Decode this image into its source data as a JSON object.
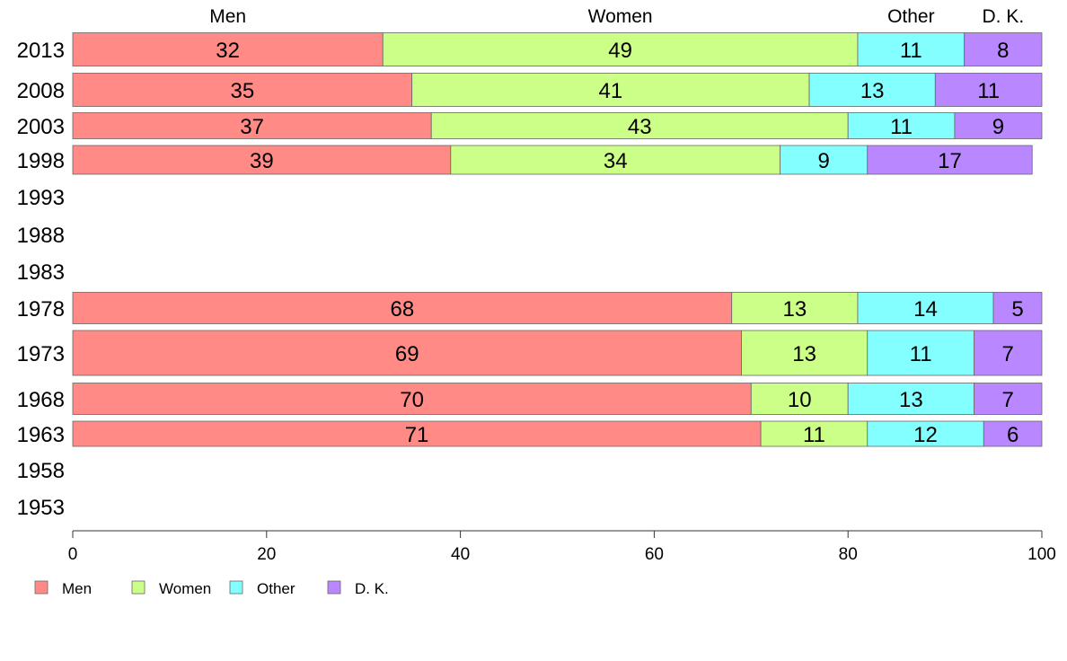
{
  "chart_data": {
    "type": "bar",
    "orientation": "horizontal",
    "stacked": true,
    "title": "",
    "xlabel": "",
    "ylabel": "",
    "xlim": [
      0,
      100
    ],
    "x_ticks": [
      0,
      20,
      40,
      60,
      80,
      100
    ],
    "grid": false,
    "legend_position": "bottom-left",
    "top_labels": [
      {
        "text": "Men",
        "series": "Men"
      },
      {
        "text": "Women",
        "series": "Women"
      },
      {
        "text": "Other",
        "series": "Other"
      },
      {
        "text": "D. K.",
        "series": "D. K."
      }
    ],
    "categories": [
      "2013",
      "2008",
      "2003",
      "1998",
      "1993",
      "1988",
      "1983",
      "1978",
      "1973",
      "1968",
      "1963",
      "1958",
      "1953"
    ],
    "series": [
      {
        "name": "Men",
        "color": "#ff8a86",
        "values": [
          32,
          35,
          37,
          39,
          null,
          null,
          null,
          68,
          69,
          70,
          71,
          null,
          null
        ]
      },
      {
        "name": "Women",
        "color": "#ccff87",
        "values": [
          49,
          41,
          43,
          34,
          null,
          null,
          null,
          13,
          13,
          10,
          11,
          null,
          null
        ]
      },
      {
        "name": "Other",
        "color": "#84ffff",
        "values": [
          11,
          13,
          11,
          9,
          null,
          null,
          null,
          14,
          11,
          13,
          12,
          null,
          null
        ]
      },
      {
        "name": "D. K.",
        "color": "#b987ff",
        "values": [
          8,
          11,
          9,
          17,
          null,
          null,
          null,
          5,
          7,
          7,
          6,
          null,
          null
        ]
      }
    ]
  }
}
